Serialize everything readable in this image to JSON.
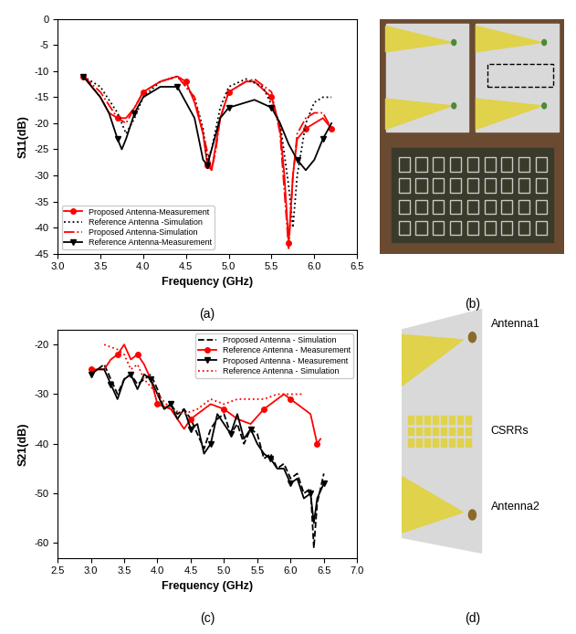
{
  "chart_data": [
    {
      "type": "line",
      "caption": "(a)",
      "x_label": "Frequency (GHz)",
      "y_label": "S11(dB)",
      "xlim": [
        3.0,
        6.5
      ],
      "xticks": [
        3.0,
        3.5,
        4.0,
        4.5,
        5.0,
        5.5,
        6.0,
        6.5
      ],
      "ylim": [
        -45,
        0
      ],
      "yticks": [
        0,
        -5,
        -10,
        -15,
        -20,
        -25,
        -30,
        -35,
        -40,
        -45
      ],
      "legend": "lower left",
      "series": [
        {
          "name": "Proposed Antenna-Measurement",
          "color": "#ff0000",
          "line_style": "solid",
          "marker": "circle",
          "x": [
            3.3,
            3.5,
            3.6,
            3.7,
            3.8,
            3.9,
            4.0,
            4.2,
            4.4,
            4.5,
            4.6,
            4.7,
            4.75,
            4.8,
            4.9,
            5.0,
            5.2,
            5.3,
            5.5,
            5.6,
            5.65,
            5.7,
            5.75,
            5.8,
            5.9,
            6.0,
            6.1,
            6.2
          ],
          "values": [
            -11,
            -15,
            -18,
            -19,
            -19,
            -17,
            -14,
            -12,
            -11,
            -12,
            -16,
            -22,
            -28,
            -29,
            -19,
            -14,
            -12,
            -12,
            -15,
            -21,
            -30,
            -43,
            -30,
            -23,
            -21,
            -20,
            -19,
            -21
          ]
        },
        {
          "name": "Reference Antenna -Simulation",
          "color": "#000000",
          "line_style": "dotted",
          "marker": "none",
          "x": [
            3.3,
            3.5,
            3.7,
            3.8,
            3.9,
            4.0,
            4.2,
            4.4,
            4.6,
            4.7,
            4.75,
            4.8,
            4.9,
            5.0,
            5.2,
            5.4,
            5.6,
            5.7,
            5.75,
            5.8,
            5.9,
            6.0,
            6.1,
            6.2
          ],
          "values": [
            -11,
            -13,
            -18,
            -22,
            -19,
            -15,
            -12,
            -11,
            -15,
            -21,
            -27,
            -25,
            -17,
            -13,
            -11.5,
            -13,
            -20,
            -32,
            -40,
            -30,
            -20,
            -16,
            -15,
            -15
          ]
        },
        {
          "name": "Proposed Antenna-Simulation",
          "color": "#ff0000",
          "line_style": "dashdot",
          "marker": "none",
          "x": [
            3.3,
            3.5,
            3.7,
            3.8,
            3.9,
            4.0,
            4.2,
            4.4,
            4.6,
            4.7,
            4.8,
            4.85,
            4.9,
            5.0,
            5.2,
            5.3,
            5.5,
            5.6,
            5.7,
            5.75,
            5.8,
            5.9,
            6.0,
            6.1,
            6.2
          ],
          "values": [
            -11,
            -14,
            -19,
            -20,
            -17,
            -14,
            -12,
            -11,
            -15,
            -22,
            -29,
            -25,
            -19,
            -14,
            -12,
            -11.5,
            -14,
            -22,
            -44,
            -30,
            -22,
            -19,
            -18,
            -18,
            -21
          ]
        },
        {
          "name": "Reference Antenna-Measurement",
          "color": "#000000",
          "line_style": "solid",
          "marker": "triangle_down",
          "x": [
            3.3,
            3.5,
            3.6,
            3.7,
            3.75,
            3.8,
            3.9,
            4.0,
            4.2,
            4.4,
            4.6,
            4.7,
            4.75,
            4.8,
            4.9,
            5.0,
            5.2,
            5.3,
            5.5,
            5.6,
            5.7,
            5.8,
            5.9,
            6.0,
            6.1,
            6.2
          ],
          "values": [
            -11,
            -15,
            -18,
            -23,
            -25,
            -23,
            -18,
            -15,
            -13,
            -13,
            -19,
            -27,
            -28,
            -25,
            -19,
            -17,
            -16,
            -15.5,
            -17,
            -20,
            -24,
            -27,
            -29,
            -27,
            -23,
            -20
          ]
        }
      ]
    },
    {
      "type": "line",
      "caption": "(c)",
      "x_label": "Frequency (GHz)",
      "y_label": "S21(dB)",
      "xlim": [
        2.5,
        7.0
      ],
      "xticks": [
        2.5,
        3.0,
        3.5,
        4.0,
        4.5,
        5.0,
        5.5,
        6.0,
        6.5,
        7.0
      ],
      "ylim": [
        -63,
        -17
      ],
      "yticks": [
        -20,
        -30,
        -40,
        -50,
        -60
      ],
      "legend": "upper right",
      "series": [
        {
          "name": "Proposed Antenna - Simulation",
          "color": "#000000",
          "line_style": "dashed",
          "marker": "none",
          "x": [
            3.0,
            3.1,
            3.2,
            3.3,
            3.4,
            3.5,
            3.6,
            3.7,
            3.8,
            3.9,
            4.0,
            4.1,
            4.2,
            4.3,
            4.4,
            4.5,
            4.6,
            4.7,
            4.8,
            4.9,
            5.0,
            5.1,
            5.2,
            5.3,
            5.4,
            5.5,
            5.6,
            5.7,
            5.8,
            5.9,
            6.0,
            6.1,
            6.2,
            6.3,
            6.35,
            6.4,
            6.5
          ],
          "values": [
            -26,
            -25,
            -24,
            -27,
            -30,
            -27,
            -26,
            -28,
            -27,
            -26,
            -29,
            -33,
            -32,
            -34,
            -33,
            -35,
            -38,
            -41,
            -37,
            -35,
            -34,
            -38,
            -36,
            -40,
            -37,
            -38,
            -43,
            -42,
            -45,
            -44,
            -47,
            -46,
            -50,
            -49,
            -61,
            -52,
            -46
          ]
        },
        {
          "name": "Reference Antenna - Measurement",
          "color": "#ff0000",
          "line_style": "solid",
          "marker": "circle",
          "x": [
            3.0,
            3.2,
            3.3,
            3.4,
            3.5,
            3.6,
            3.7,
            3.8,
            3.9,
            4.0,
            4.2,
            4.4,
            4.5,
            4.6,
            4.8,
            5.0,
            5.2,
            5.4,
            5.6,
            5.8,
            5.9,
            6.0,
            6.2,
            6.3,
            6.4,
            6.45
          ],
          "values": [
            -25,
            -25,
            -23,
            -22,
            -20,
            -23,
            -22,
            -24,
            -27,
            -32,
            -33,
            -37,
            -35,
            -34,
            -32,
            -33,
            -35,
            -36,
            -33,
            -31,
            -30,
            -31,
            -33,
            -34,
            -40,
            -39
          ]
        },
        {
          "name": "Proposed Antenna - Measurement",
          "color": "#000000",
          "line_style": "solid",
          "marker": "triangle_down",
          "x": [
            3.0,
            3.1,
            3.2,
            3.3,
            3.4,
            3.5,
            3.6,
            3.7,
            3.8,
            3.9,
            4.0,
            4.1,
            4.2,
            4.3,
            4.4,
            4.5,
            4.6,
            4.7,
            4.8,
            4.9,
            5.0,
            5.1,
            5.2,
            5.3,
            5.4,
            5.5,
            5.6,
            5.7,
            5.8,
            5.9,
            6.0,
            6.1,
            6.2,
            6.3,
            6.35,
            6.4,
            6.5
          ],
          "values": [
            -26,
            -25,
            -25,
            -28,
            -31,
            -27,
            -26,
            -29,
            -26,
            -27,
            -30,
            -33,
            -32,
            -35,
            -33,
            -37,
            -36,
            -42,
            -40,
            -34,
            -36,
            -38,
            -34,
            -39,
            -37,
            -40,
            -42,
            -43,
            -45,
            -45,
            -48,
            -47,
            -51,
            -50,
            -56,
            -51,
            -48
          ]
        },
        {
          "name": "Reference Antenna - Simulation",
          "color": "#ff0000",
          "line_style": "dotted",
          "marker": "none",
          "x": [
            3.2,
            3.4,
            3.5,
            3.6,
            3.7,
            3.8,
            4.0,
            4.2,
            4.4,
            4.6,
            4.8,
            5.0,
            5.2,
            5.4,
            5.6,
            5.8,
            6.0,
            6.2
          ],
          "values": [
            -20,
            -21,
            -22,
            -25,
            -24,
            -27,
            -30,
            -33,
            -34,
            -33,
            -31,
            -32,
            -31,
            -31,
            -31,
            -30,
            -30,
            -30
          ]
        }
      ]
    }
  ],
  "photos": [
    {
      "caption": "(b)"
    },
    {
      "caption": "(d)",
      "labels": [
        "Antenna1",
        "CSRRs",
        "Antenna2"
      ]
    }
  ]
}
